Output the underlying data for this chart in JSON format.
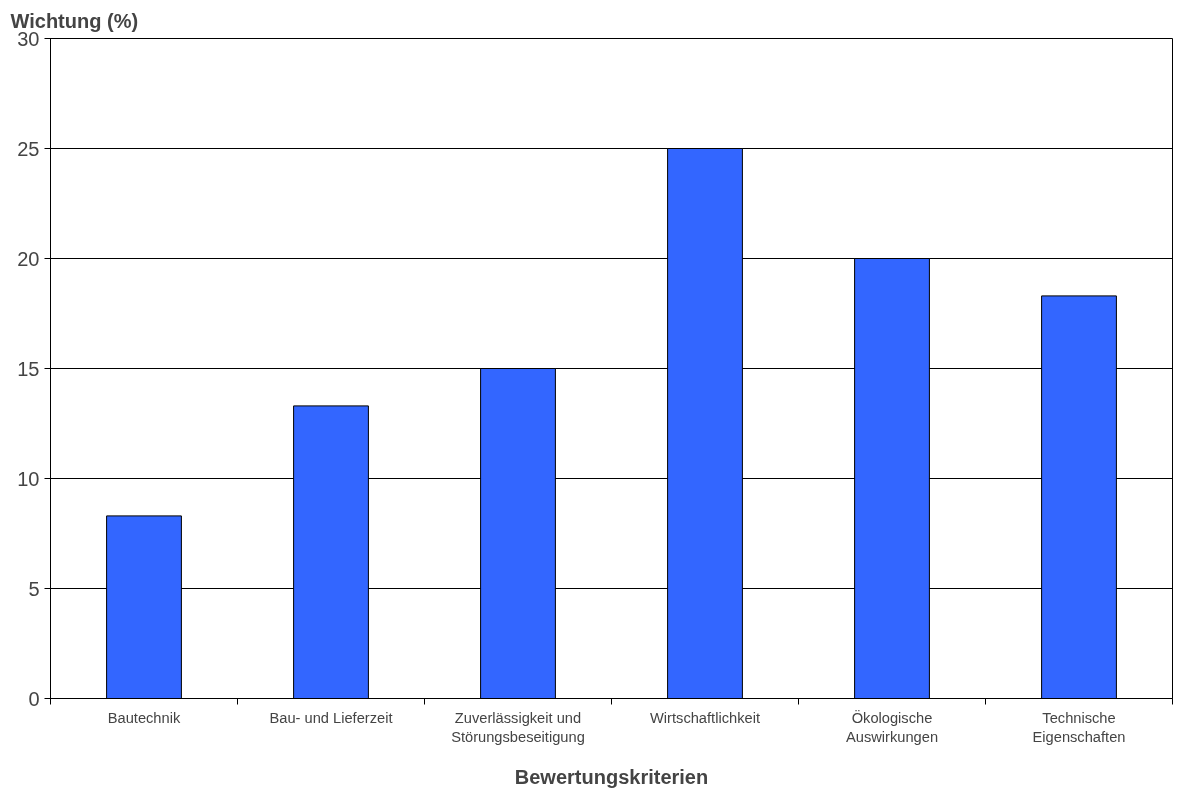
{
  "chart_data": {
    "type": "bar",
    "ylabel": "Wichtung (%)",
    "xlabel": "Bewertungskriterien",
    "categories": [
      "Bautechnik",
      "Bau- und Lieferzeit",
      "Zuverlässigkeit und Störungsbeseitigung",
      "Wirtschaftlichkeit",
      "Ökologische Auswirkungen",
      "Technische Eigenschaften"
    ],
    "values": [
      8.3,
      13.3,
      15,
      25,
      20,
      18.3
    ],
    "color": "#3366ff",
    "ylim": [
      0,
      30
    ],
    "yticks": [
      0,
      5,
      10,
      15,
      20,
      25,
      30
    ],
    "grid": "y"
  }
}
